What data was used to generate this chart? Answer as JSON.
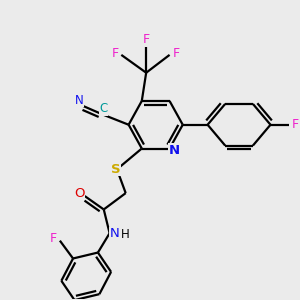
{
  "background_color": "#ebebeb",
  "bond_color": "#000000",
  "lw": 1.6,
  "heteroatom_colors": {
    "N": "#1010ee",
    "O": "#dd0000",
    "S": "#ccaa00",
    "F": "#ee22cc",
    "C_cyan": "#009999"
  },
  "xlim": [
    0,
    10
  ],
  "ylim": [
    0,
    10
  ]
}
